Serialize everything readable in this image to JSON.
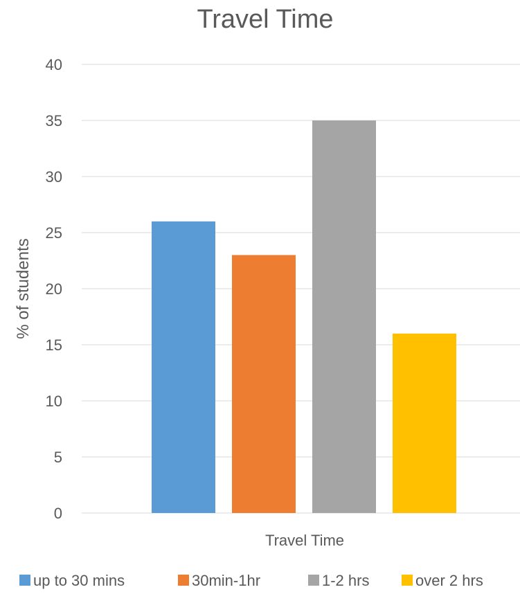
{
  "chart_data": {
    "type": "bar",
    "title": "Travel Time",
    "xlabel": "Travel Time",
    "ylabel": "% of students",
    "ylim": [
      0,
      40
    ],
    "yticks": [
      "0",
      "5",
      "10",
      "15",
      "20",
      "25",
      "30",
      "35",
      "40"
    ],
    "grid": true,
    "legend_position": "bottom",
    "series": [
      {
        "name": "up to 30 mins",
        "value": 26,
        "color": "#5B9BD5"
      },
      {
        "name": "30min-1hr",
        "value": 23,
        "color": "#ED7D31"
      },
      {
        "name": "1-2 hrs",
        "value": 35,
        "color": "#A5A5A5"
      },
      {
        "name": "over 2 hrs",
        "value": 16,
        "color": "#FFC000"
      }
    ]
  }
}
